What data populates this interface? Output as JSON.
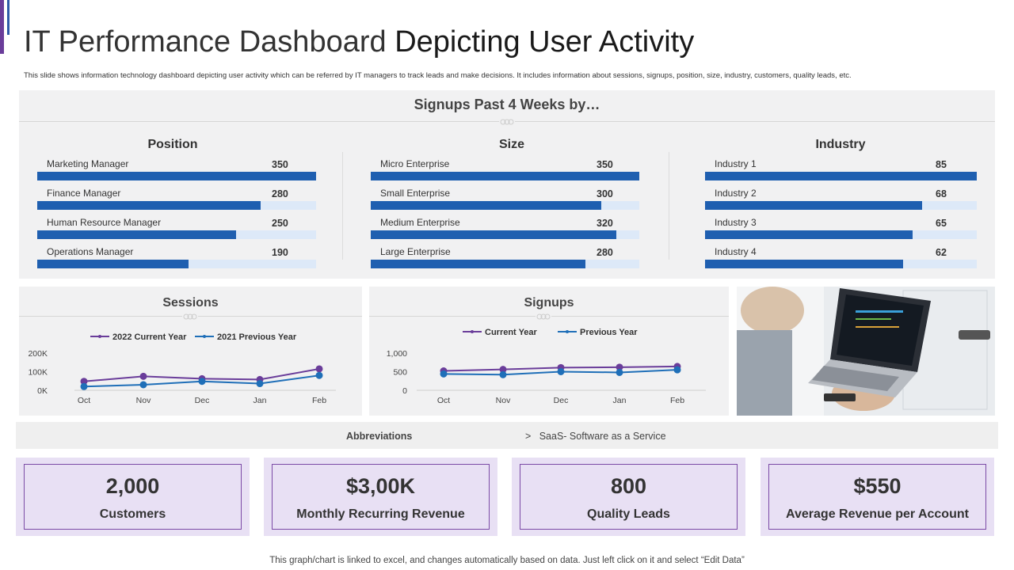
{
  "header": {
    "title_light": "IT Performance Dashboard",
    "title_bold": "Depicting User Activity",
    "subtitle": "This slide shows information technology dashboard depicting user activity which can be referred by IT managers to track leads and make decisions. It includes information about sessions, signups, position, size, industry, customers, quality leads, etc."
  },
  "signups_panel": {
    "heading": "Signups Past 4 Weeks by…"
  },
  "chart_data": [
    {
      "type": "bar",
      "orientation": "horizontal",
      "title": "Position",
      "categories": [
        "Marketing Manager",
        "Finance Manager",
        "Human Resource Manager",
        "Operations Manager"
      ],
      "values": [
        350,
        280,
        250,
        190
      ],
      "xlim": [
        0,
        350
      ]
    },
    {
      "type": "bar",
      "orientation": "horizontal",
      "title": "Size",
      "categories": [
        "Micro Enterprise",
        "Small Enterprise",
        "Medium Enterprise",
        "Large Enterprise"
      ],
      "values": [
        350,
        300,
        320,
        280
      ],
      "xlim": [
        0,
        350
      ]
    },
    {
      "type": "bar",
      "orientation": "horizontal",
      "title": "Industry",
      "categories": [
        "Industry 1",
        "Industry 2",
        "Industry 3",
        "Industry 4"
      ],
      "values": [
        85,
        68,
        65,
        62
      ],
      "xlim": [
        0,
        85
      ]
    },
    {
      "type": "line",
      "title": "Sessions",
      "categories": [
        "Oct",
        "Nov",
        "Dec",
        "Jan",
        "Feb"
      ],
      "yticks": [
        "0K",
        "100K",
        "200K"
      ],
      "ylim": [
        0,
        200000
      ],
      "series": [
        {
          "name": "2022 Current Year",
          "color": "#6a3d9a",
          "values": [
            48000,
            75000,
            62000,
            58000,
            115000
          ]
        },
        {
          "name": "2021 Previous Year",
          "color": "#1f6fb8",
          "values": [
            20000,
            30000,
            48000,
            36000,
            80000
          ]
        }
      ]
    },
    {
      "type": "line",
      "title": "Signups",
      "categories": [
        "Oct",
        "Nov",
        "Dec",
        "Jan",
        "Feb"
      ],
      "yticks": [
        "0",
        "500",
        "1,000"
      ],
      "ylim": [
        0,
        1000
      ],
      "series": [
        {
          "name": "Current Year",
          "color": "#6a3d9a",
          "values": [
            520,
            560,
            610,
            620,
            640
          ]
        },
        {
          "name": "Previous Year",
          "color": "#1f6fb8",
          "values": [
            440,
            420,
            500,
            480,
            550
          ]
        }
      ]
    }
  ],
  "abbreviations": {
    "label": "Abbreviations",
    "text": ">   SaaS- Software as a Service"
  },
  "kpis": [
    {
      "value": "2,000",
      "label": "Customers"
    },
    {
      "value": "$3,00K",
      "label": "Monthly Recurring Revenue"
    },
    {
      "value": "800",
      "label": "Quality Leads"
    },
    {
      "value": "$550",
      "label": "Average Revenue per Account"
    }
  ],
  "footnote": "This graph/chart is linked to excel,  and changes automatically based on data. Just left click on it and select “Edit Data”",
  "colors": {
    "accent": "#6a3d9a",
    "bar": "#1f5fb0",
    "track": "#dde9f8",
    "kpi_bg": "#e8e0f4"
  }
}
